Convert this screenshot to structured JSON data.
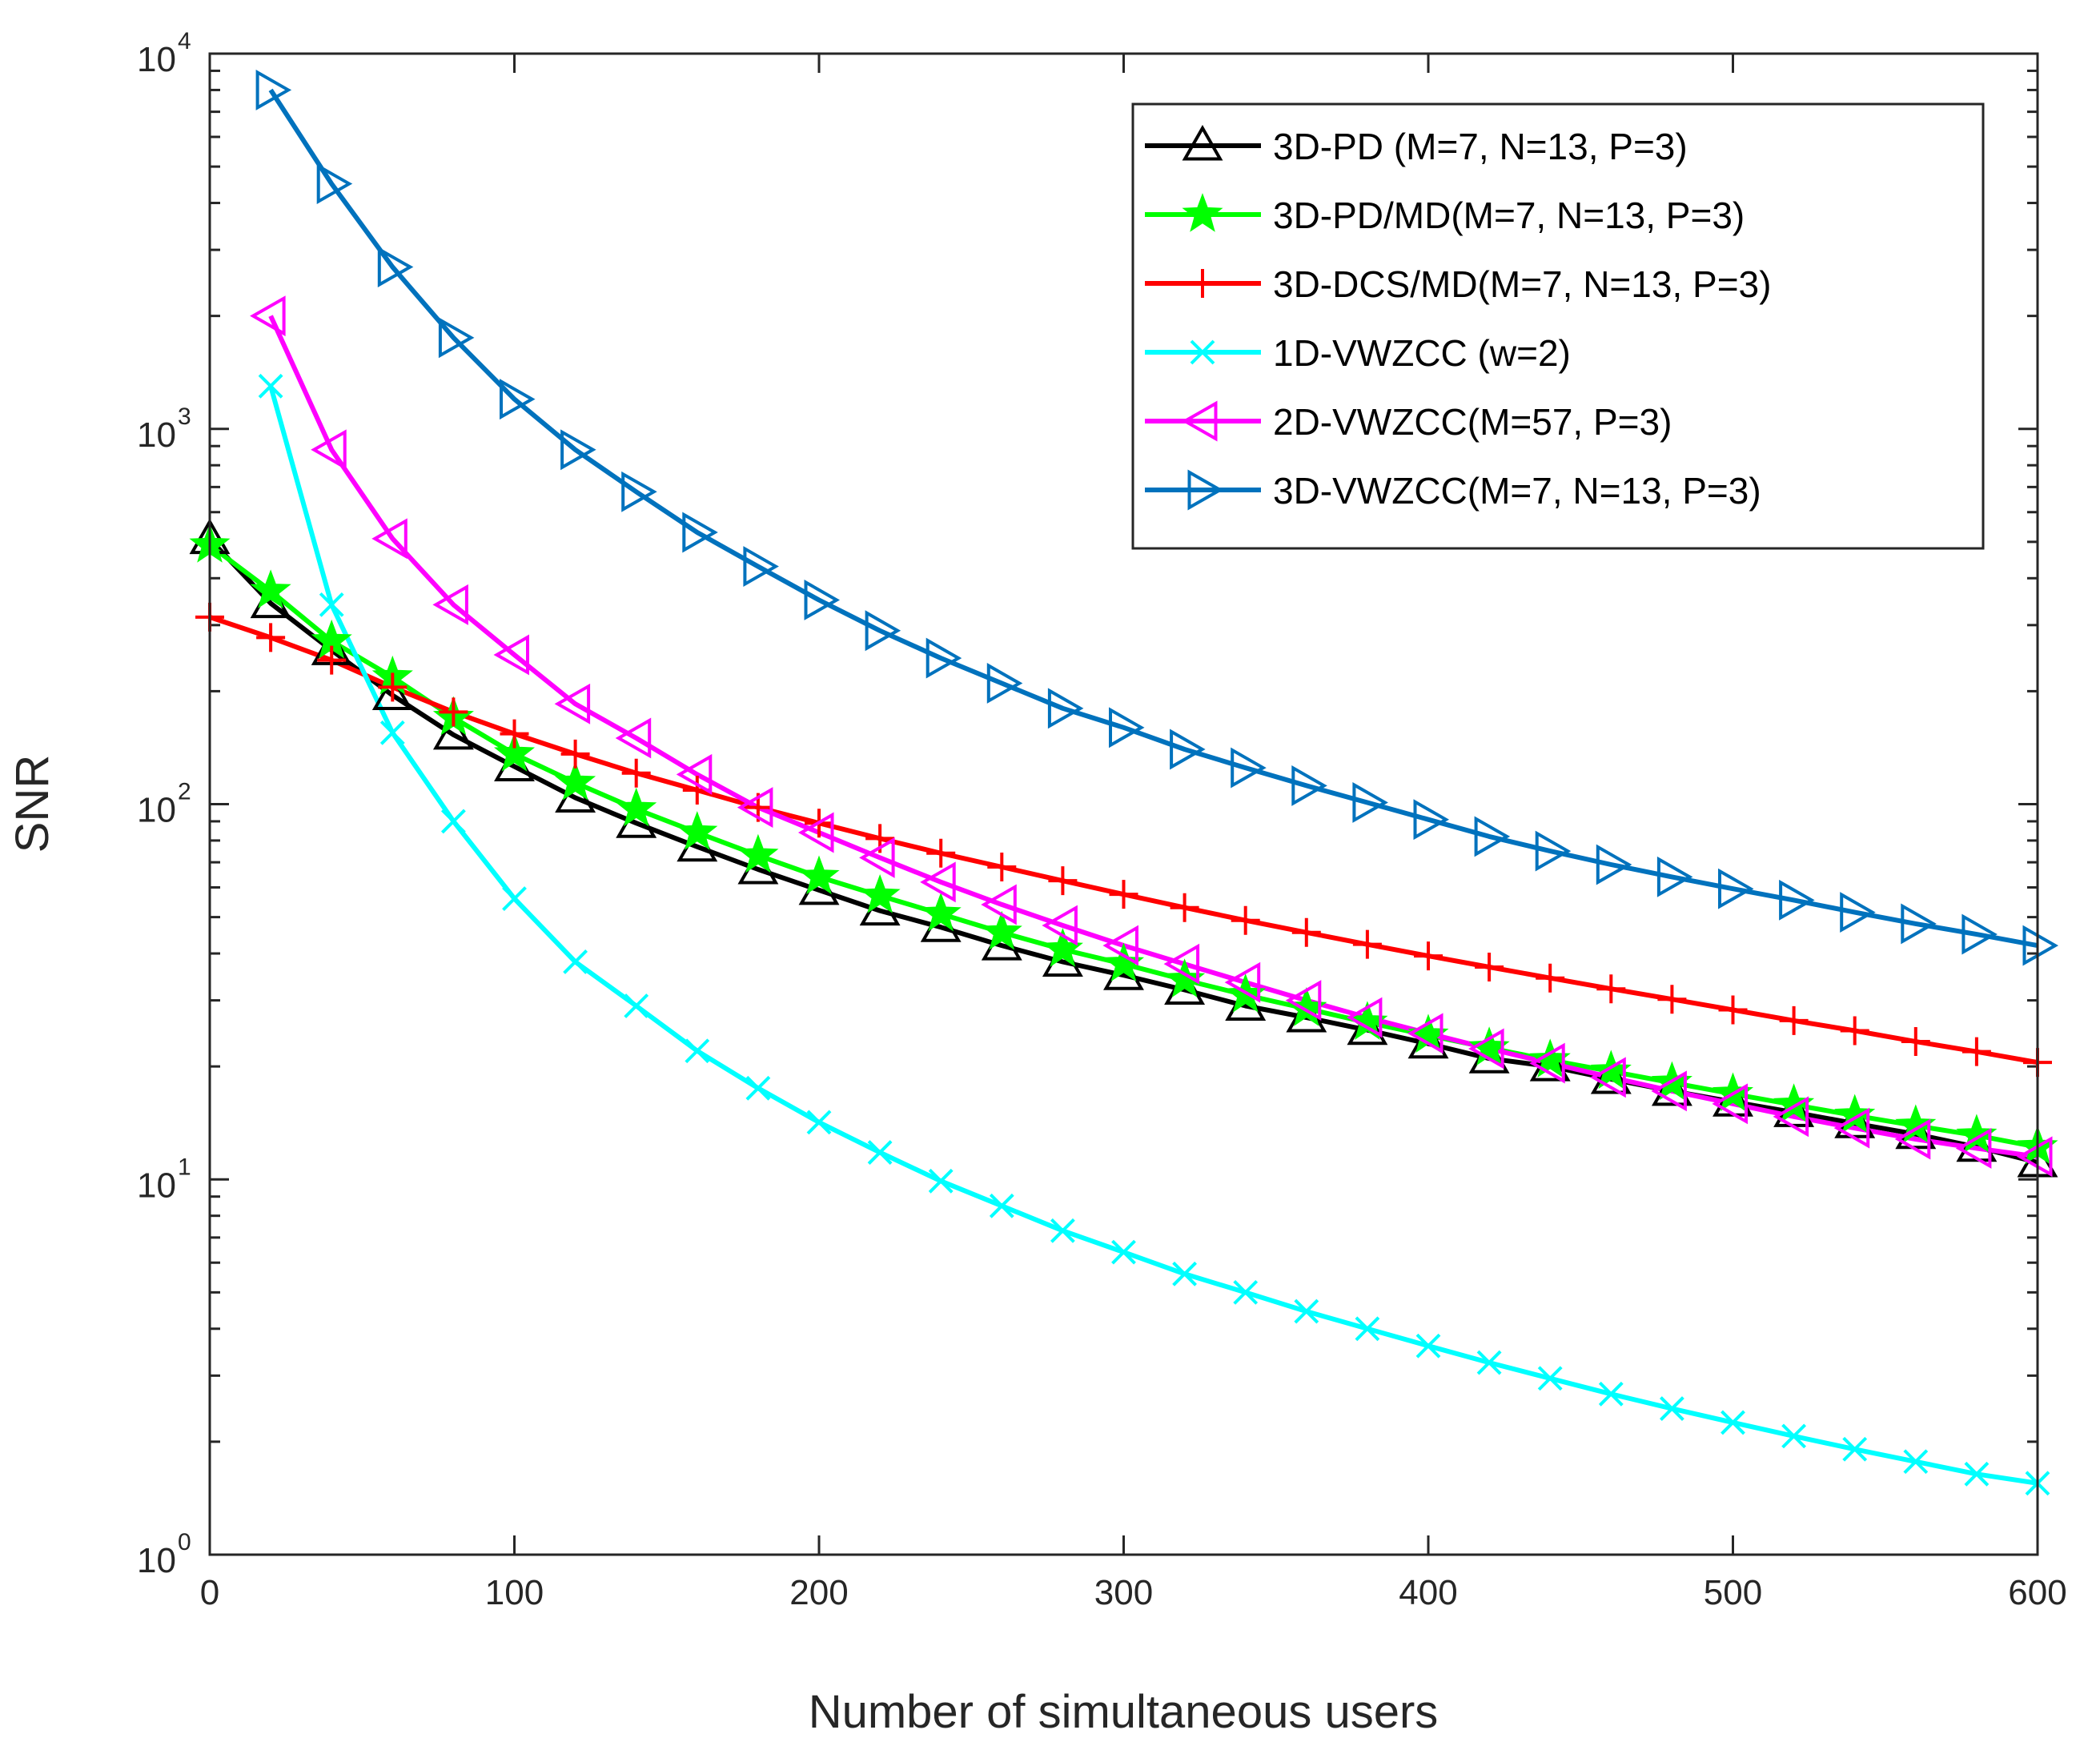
{
  "chart_data": {
    "type": "line",
    "title": "",
    "xlabel": "Number of simultaneous users",
    "ylabel": "SNR",
    "xlim": [
      0,
      600
    ],
    "ylim": [
      1,
      10000
    ],
    "yscale": "log",
    "xticks": [
      0,
      100,
      200,
      300,
      400,
      500,
      600
    ],
    "xtick_labels": [
      "0",
      "100",
      "200",
      "300",
      "400",
      "500",
      "600"
    ],
    "yticks": [
      1,
      10,
      100,
      1000,
      10000
    ],
    "ytick_labels": [
      {
        "base": "10",
        "exp": "0"
      },
      {
        "base": "10",
        "exp": "1"
      },
      {
        "base": "10",
        "exp": "2"
      },
      {
        "base": "10",
        "exp": "3"
      },
      {
        "base": "10",
        "exp": "4"
      }
    ],
    "grid": false,
    "legend_position": "top-right",
    "series": [
      {
        "name": "3D-PD (M=7, N=13, P=3)",
        "color": "#000000",
        "marker": "triangle-up",
        "x": [
          0,
          20,
          40,
          60,
          80,
          100,
          120,
          140,
          160,
          180,
          200,
          220,
          240,
          260,
          280,
          300,
          320,
          340,
          360,
          380,
          400,
          420,
          440,
          460,
          480,
          500,
          520,
          540,
          560,
          580,
          600
        ],
        "values": [
          508,
          343,
          257,
          195,
          153,
          126,
          104,
          89,
          77,
          67,
          59,
          52,
          47,
          42,
          38,
          35,
          32,
          29,
          27,
          25,
          23,
          21,
          20,
          18.5,
          17.2,
          16.1,
          15.1,
          14.1,
          13.2,
          12.2,
          11.1
        ]
      },
      {
        "name": "3D-PD/MD(M=7, N=13, P=3)",
        "color": "#00ff00",
        "marker": "star",
        "x": [
          0,
          20,
          40,
          60,
          80,
          100,
          120,
          140,
          160,
          180,
          200,
          220,
          240,
          260,
          280,
          300,
          320,
          340,
          360,
          380,
          400,
          420,
          440,
          460,
          480,
          500,
          520,
          540,
          560,
          580,
          600
        ],
        "values": [
          490,
          370,
          272,
          218,
          170,
          136,
          114,
          97,
          84,
          73,
          64,
          57,
          51,
          45.5,
          41,
          37.5,
          34,
          31,
          28.5,
          26.2,
          24.2,
          22.4,
          20.8,
          19.4,
          18.1,
          16.9,
          15.8,
          14.8,
          13.9,
          13.1,
          12.2
        ]
      },
      {
        "name": "3D-DCS/MD(M=7, N=13, P=3)",
        "color": "#ff0000",
        "marker": "plus",
        "x": [
          0,
          20,
          40,
          60,
          80,
          100,
          120,
          140,
          160,
          180,
          200,
          220,
          240,
          260,
          280,
          300,
          320,
          340,
          360,
          380,
          400,
          420,
          440,
          460,
          480,
          500,
          520,
          540,
          560,
          580,
          600
        ],
        "values": [
          315,
          278,
          242,
          205,
          176,
          154,
          136,
          121,
          109,
          98,
          89,
          81,
          74,
          68,
          62.5,
          57.5,
          53,
          49,
          45.5,
          42.3,
          39.4,
          36.8,
          34.4,
          32.2,
          30.2,
          28.3,
          26.5,
          24.9,
          23.3,
          21.9,
          20.5
        ]
      },
      {
        "name": "1D-VWZCC (w=2)",
        "color": "#00ffff",
        "marker": "x",
        "x": [
          20,
          40,
          60,
          80,
          100,
          120,
          140,
          160,
          180,
          200,
          220,
          240,
          260,
          280,
          300,
          320,
          340,
          360,
          380,
          400,
          420,
          440,
          460,
          480,
          500,
          520,
          540,
          560,
          580,
          600
        ],
        "values": [
          1300,
          340,
          155,
          90,
          56,
          38,
          29,
          22,
          17.5,
          14.2,
          11.8,
          9.9,
          8.5,
          7.3,
          6.4,
          5.6,
          5.0,
          4.45,
          4.0,
          3.6,
          3.25,
          2.95,
          2.68,
          2.45,
          2.25,
          2.07,
          1.91,
          1.77,
          1.64,
          1.55
        ]
      },
      {
        "name": "2D-VWZCC(M=57, P=3)",
        "color": "#ff00ff",
        "marker": "triangle-left",
        "x": [
          20,
          40,
          60,
          80,
          100,
          120,
          140,
          160,
          180,
          200,
          220,
          240,
          260,
          280,
          300,
          320,
          340,
          360,
          380,
          400,
          420,
          440,
          460,
          480,
          500,
          520,
          540,
          560,
          580,
          600
        ],
        "values": [
          2000,
          880,
          510,
          340,
          250,
          185,
          150,
          120,
          98,
          84,
          72,
          62,
          54,
          47.5,
          42,
          37.5,
          33.5,
          30,
          27,
          24.5,
          22.3,
          20.4,
          18.7,
          17.2,
          15.9,
          14.7,
          13.7,
          12.8,
          12.1,
          11.5
        ]
      },
      {
        "name": "3D-VWZCC(M=7, N=13, P=3)",
        "color": "#0072bd",
        "marker": "triangle-right",
        "x": [
          20,
          40,
          60,
          80,
          100,
          120,
          140,
          160,
          180,
          200,
          220,
          240,
          260,
          280,
          300,
          320,
          340,
          360,
          380,
          400,
          420,
          440,
          460,
          480,
          500,
          520,
          540,
          560,
          580,
          600
        ],
        "values": [
          8000,
          4500,
          2700,
          1750,
          1200,
          880,
          680,
          530,
          430,
          350,
          290,
          245,
          210,
          180,
          160,
          140,
          125,
          112,
          101,
          91,
          82,
          75,
          69,
          64,
          59.5,
          55.5,
          51.5,
          48,
          45,
          42
        ]
      }
    ]
  }
}
